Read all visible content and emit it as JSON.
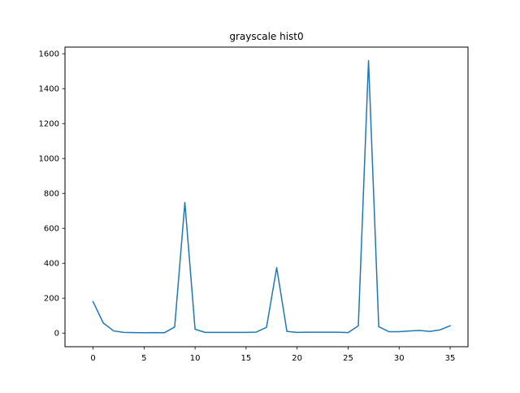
{
  "chart_data": {
    "type": "line",
    "title": "grayscale hist0",
    "xlabel": "",
    "ylabel": "",
    "x": [
      0,
      1,
      2,
      3,
      4,
      5,
      6,
      7,
      8,
      9,
      10,
      11,
      12,
      13,
      14,
      15,
      16,
      17,
      18,
      19,
      20,
      21,
      22,
      23,
      24,
      25,
      26,
      27,
      28,
      29,
      30,
      31,
      32,
      33,
      34,
      35
    ],
    "series": [
      {
        "values": [
          180,
          58,
          13,
          4,
          3,
          2,
          3,
          2,
          35,
          748,
          22,
          4,
          4,
          4,
          4,
          4,
          6,
          33,
          375,
          10,
          4,
          5,
          5,
          5,
          5,
          3,
          42,
          1560,
          37,
          8,
          8,
          12,
          15,
          10,
          18,
          42
        ],
        "color": "#1f77b4"
      }
    ],
    "xlim": [
      -2.75,
      36.75
    ],
    "ylim": [
      -78,
      1638
    ],
    "x_ticks": [
      0,
      5,
      10,
      15,
      20,
      25,
      30,
      35
    ],
    "y_ticks": [
      0,
      200,
      400,
      600,
      800,
      1000,
      1200,
      1400,
      1600
    ],
    "grid": false,
    "legend": "none"
  }
}
